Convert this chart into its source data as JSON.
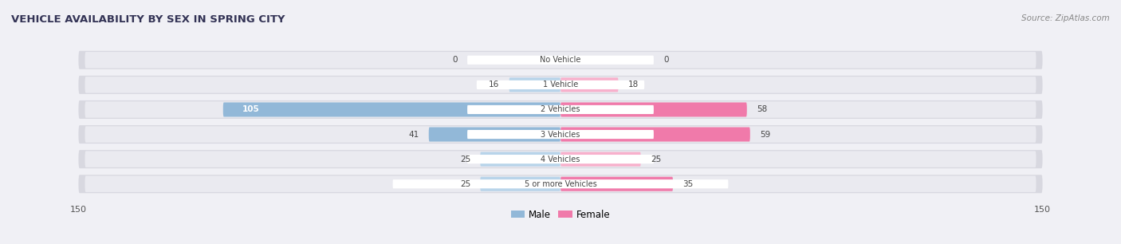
{
  "title": "VEHICLE AVAILABILITY BY SEX IN SPRING CITY",
  "source": "Source: ZipAtlas.com",
  "categories": [
    "No Vehicle",
    "1 Vehicle",
    "2 Vehicles",
    "3 Vehicles",
    "4 Vehicles",
    "5 or more Vehicles"
  ],
  "male_values": [
    0,
    16,
    105,
    41,
    25,
    25
  ],
  "female_values": [
    0,
    18,
    58,
    59,
    25,
    35
  ],
  "male_color": "#92b8d8",
  "female_color": "#f07aaa",
  "male_color_light": "#b8d4ea",
  "female_color_light": "#f8b0cc",
  "row_bg_outer": "#d8d8e0",
  "row_bg_inner": "#eaeaf0",
  "axis_max": 150,
  "legend_male": "Male",
  "legend_female": "Female",
  "figsize": [
    14.06,
    3.06
  ],
  "dpi": 100,
  "bg_color": "#f0f0f5"
}
